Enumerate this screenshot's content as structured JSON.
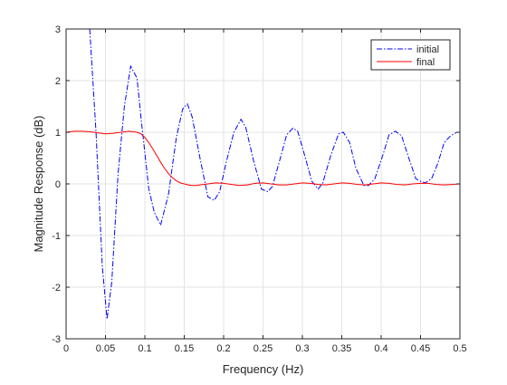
{
  "chart_data": {
    "type": "line",
    "xlabel": "Frequency (Hz)",
    "ylabel": "Magnitude Response (dB)",
    "xlim": [
      0,
      0.5
    ],
    "ylim": [
      -3,
      3
    ],
    "xticks": [
      0,
      0.05,
      0.1,
      0.15,
      0.2,
      0.25,
      0.3,
      0.35,
      0.4,
      0.45,
      0.5
    ],
    "xtick_labels": [
      "0",
      "0.05",
      "0.1",
      "0.15",
      "0.2",
      "0.25",
      "0.3",
      "0.35",
      "0.4",
      "0.45",
      "0.5"
    ],
    "yticks": [
      -3,
      -2,
      -1,
      0,
      1,
      2,
      3
    ],
    "ytick_labels": [
      "-3",
      "-2",
      "-1",
      "0",
      "1",
      "2",
      "3"
    ],
    "grid": true,
    "legend_position": "top-right",
    "series": [
      {
        "name": "initial",
        "color": "#0000ff",
        "style": "dash-dot",
        "x": [
          0.03,
          0.038,
          0.046,
          0.052,
          0.058,
          0.066,
          0.074,
          0.082,
          0.09,
          0.095,
          0.105,
          0.112,
          0.12,
          0.13,
          0.14,
          0.148,
          0.154,
          0.16,
          0.17,
          0.18,
          0.188,
          0.195,
          0.203,
          0.213,
          0.222,
          0.228,
          0.238,
          0.248,
          0.256,
          0.262,
          0.272,
          0.28,
          0.288,
          0.294,
          0.302,
          0.312,
          0.32,
          0.326,
          0.336,
          0.346,
          0.352,
          0.36,
          0.368,
          0.378,
          0.384,
          0.392,
          0.402,
          0.41,
          0.418,
          0.426,
          0.434,
          0.444,
          0.45,
          0.456,
          0.464,
          0.472,
          0.48,
          0.488,
          0.496,
          0.5
        ],
        "values": [
          3.0,
          1.0,
          -1.6,
          -2.62,
          -1.9,
          0.2,
          1.5,
          2.28,
          2.05,
          1.3,
          -0.1,
          -0.55,
          -0.8,
          -0.2,
          0.9,
          1.45,
          1.55,
          1.3,
          0.5,
          -0.25,
          -0.32,
          -0.15,
          0.4,
          1.0,
          1.25,
          1.1,
          0.45,
          -0.1,
          -0.15,
          -0.05,
          0.5,
          0.95,
          1.08,
          1.02,
          0.6,
          0.05,
          -0.1,
          0.02,
          0.55,
          0.97,
          1.0,
          0.8,
          0.3,
          -0.03,
          -0.03,
          0.1,
          0.55,
          0.95,
          1.02,
          0.93,
          0.55,
          0.1,
          0.05,
          0.02,
          0.1,
          0.4,
          0.8,
          0.93,
          1.0,
          1.0
        ]
      },
      {
        "name": "final",
        "color": "#ff0000",
        "style": "solid",
        "x": [
          0.0,
          0.01,
          0.02,
          0.03,
          0.04,
          0.05,
          0.06,
          0.07,
          0.08,
          0.09,
          0.095,
          0.1,
          0.105,
          0.11,
          0.115,
          0.12,
          0.125,
          0.13,
          0.135,
          0.14,
          0.145,
          0.15,
          0.155,
          0.16,
          0.165,
          0.17,
          0.18,
          0.19,
          0.2,
          0.21,
          0.22,
          0.23,
          0.24,
          0.25,
          0.26,
          0.27,
          0.28,
          0.29,
          0.3,
          0.31,
          0.32,
          0.33,
          0.34,
          0.35,
          0.36,
          0.37,
          0.38,
          0.39,
          0.4,
          0.41,
          0.42,
          0.43,
          0.44,
          0.45,
          0.46,
          0.47,
          0.48,
          0.49,
          0.5
        ],
        "values": [
          1.0,
          1.02,
          1.02,
          1.01,
          0.99,
          0.97,
          0.98,
          1.0,
          1.02,
          1.0,
          0.97,
          0.9,
          0.8,
          0.68,
          0.55,
          0.42,
          0.3,
          0.2,
          0.12,
          0.06,
          0.02,
          0.0,
          -0.02,
          -0.03,
          -0.03,
          -0.02,
          0.0,
          0.02,
          0.01,
          -0.01,
          -0.03,
          -0.02,
          0.01,
          0.02,
          0.0,
          -0.02,
          -0.02,
          0.0,
          0.02,
          0.01,
          -0.01,
          -0.02,
          0.0,
          0.02,
          0.01,
          -0.01,
          -0.02,
          0.0,
          0.02,
          0.01,
          -0.01,
          -0.02,
          0.0,
          0.01,
          0.01,
          -0.01,
          -0.02,
          -0.01,
          0.0
        ]
      }
    ]
  }
}
